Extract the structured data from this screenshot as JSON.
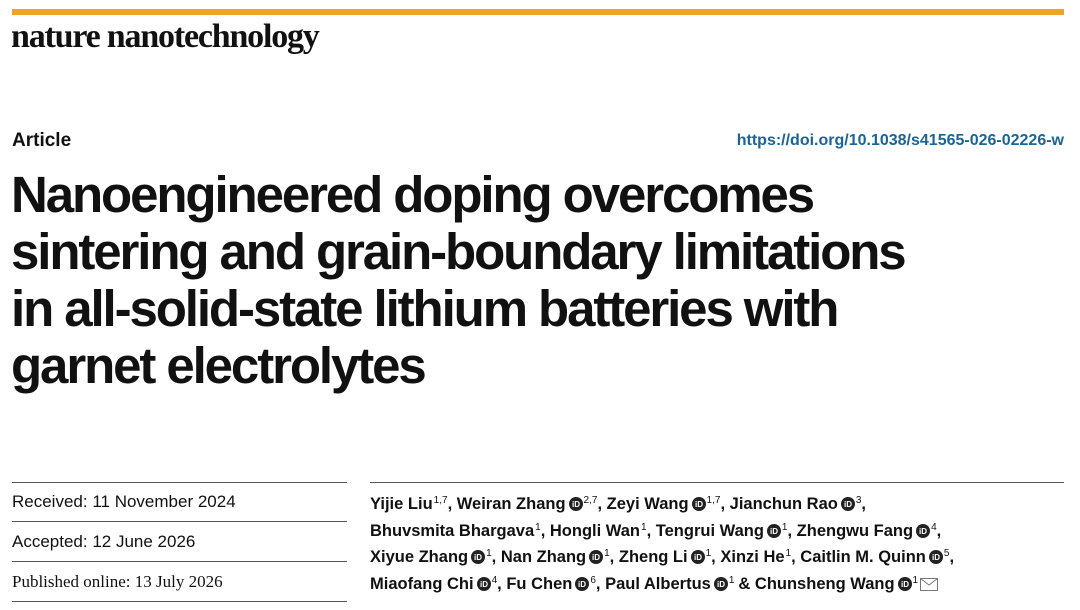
{
  "journal": "nature nanotechnology",
  "article_type": "Article",
  "doi": "https://doi.org/10.1038/s41565-026-02226-w",
  "title_lines": [
    "Nanoengineered doping overcomes",
    "sintering and grain-boundary limitations",
    "in all-solid-state lithium batteries with",
    "garnet electrolytes"
  ],
  "dates": [
    "Received: 11 November 2024",
    "Accepted: 12 June 2026",
    "Published online: 13 July 2026"
  ],
  "author_lines": [
    [
      {
        "name": "Yijie Liu",
        "aff": "1,7",
        "orcid": false,
        "sep": ","
      },
      {
        "name": "Weiran Zhang",
        "aff": "2,7",
        "orcid": true,
        "sep": ","
      },
      {
        "name": "Zeyi Wang",
        "aff": "1,7",
        "orcid": true,
        "sep": ","
      },
      {
        "name": "Jianchun Rao",
        "aff": "3",
        "orcid": true,
        "sep": ","
      }
    ],
    [
      {
        "name": "Bhuvsmita Bhargava",
        "aff": "1",
        "orcid": false,
        "sep": ","
      },
      {
        "name": "Hongli Wan",
        "aff": "1",
        "orcid": false,
        "sep": ","
      },
      {
        "name": "Tengrui Wang",
        "aff": "1",
        "orcid": true,
        "sep": ","
      },
      {
        "name": "Zhengwu Fang",
        "aff": "4",
        "orcid": true,
        "sep": ","
      }
    ],
    [
      {
        "name": "Xiyue Zhang",
        "aff": "1",
        "orcid": true,
        "sep": ","
      },
      {
        "name": "Nan Zhang",
        "aff": "1",
        "orcid": true,
        "sep": ","
      },
      {
        "name": "Zheng Li",
        "aff": "1",
        "orcid": true,
        "sep": ","
      },
      {
        "name": "Xinzi He",
        "aff": "1",
        "orcid": false,
        "sep": ","
      },
      {
        "name": "Caitlin M. Quinn",
        "aff": "5",
        "orcid": true,
        "sep": ","
      }
    ],
    [
      {
        "name": "Miaofang Chi",
        "aff": "4",
        "orcid": true,
        "sep": ","
      },
      {
        "name": "Fu Chen",
        "aff": "6",
        "orcid": true,
        "sep": ","
      },
      {
        "name": "Paul Albertus",
        "aff": "1",
        "orcid": true,
        "sep": "&"
      },
      {
        "name": "Chunsheng Wang",
        "aff": "1",
        "orcid": true
      }
    ]
  ]
}
